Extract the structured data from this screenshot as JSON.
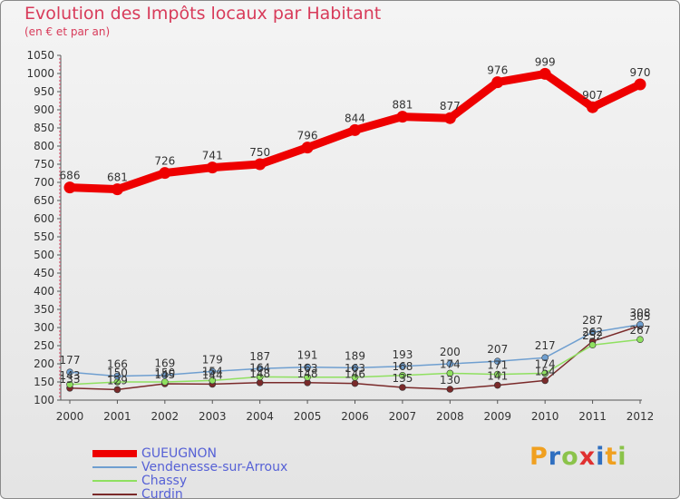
{
  "chart_data": {
    "type": "line",
    "title": "Evolution des Impôts locaux par Habitant",
    "subtitle": "(en € et par an)",
    "xlabel": "",
    "ylabel": "",
    "ylim": [
      100,
      1050
    ],
    "ytick_step": 50,
    "categories": [
      "2000",
      "2001",
      "2002",
      "2003",
      "2004",
      "2005",
      "2006",
      "2007",
      "2008",
      "2009",
      "2010",
      "2011",
      "2012"
    ],
    "series": [
      {
        "name": "GUEUGNON",
        "color": "#ee0000",
        "values": [
          686,
          681,
          726,
          741,
          750,
          796,
          844,
          881,
          877,
          976,
          999,
          907,
          970
        ]
      },
      {
        "name": "Vendenesse-sur-Arroux",
        "color": "#6f9fd0",
        "values": [
          177,
          166,
          169,
          179,
          187,
          191,
          189,
          193,
          200,
          207,
          217,
          287,
          308
        ]
      },
      {
        "name": "Chassy",
        "color": "#8fe060",
        "values": [
          143,
          150,
          150,
          154,
          164,
          163,
          163,
          168,
          174,
          171,
          174,
          252,
          267
        ]
      },
      {
        "name": "Curdin",
        "color": "#7a2a2a",
        "values": [
          133,
          129,
          145,
          144,
          148,
          148,
          146,
          135,
          130,
          141,
          154,
          262,
          305
        ]
      }
    ]
  },
  "logo": {
    "text": "Proxiti"
  }
}
